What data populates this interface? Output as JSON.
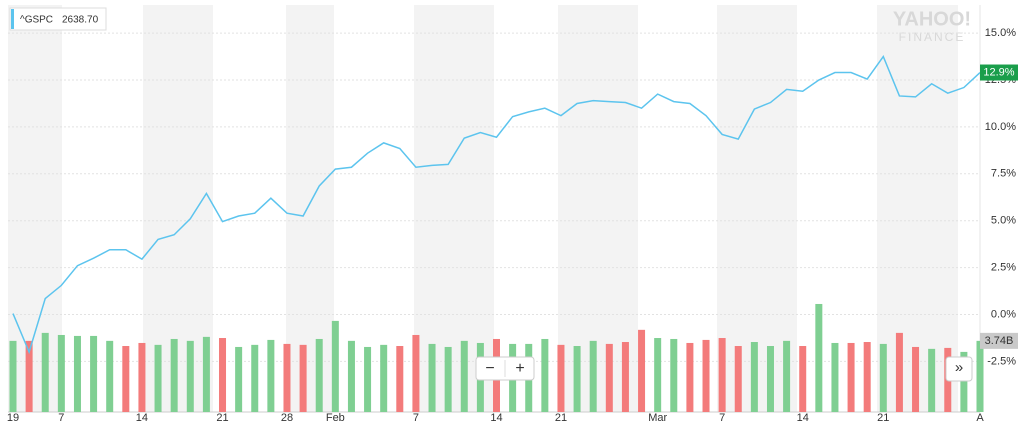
{
  "chart_data": {
    "type": "line",
    "legend": {
      "name": "^GSPC",
      "quote": {
        "value": 2638.7,
        "label": "2638.70"
      }
    },
    "watermark": [
      "YAHOO!",
      "FINANCE"
    ],
    "categories": [
      "19",
      null,
      null,
      "7",
      null,
      null,
      null,
      null,
      "14",
      null,
      null,
      null,
      null,
      "21",
      null,
      null,
      null,
      "28",
      null,
      null,
      "Feb",
      null,
      null,
      null,
      null,
      "7",
      null,
      null,
      null,
      null,
      "14",
      null,
      null,
      null,
      "21",
      null,
      null,
      null,
      null,
      null,
      "Mar",
      null,
      null,
      null,
      "7",
      null,
      null,
      null,
      null,
      "14",
      null,
      null,
      null,
      null,
      "21",
      null,
      null,
      null,
      null,
      null,
      "A"
    ],
    "series": [
      {
        "name": "^GSPC",
        "color": "#5cc4ee",
        "values": [
          0.05,
          -2.0,
          0.85,
          1.55,
          2.6,
          3.0,
          3.45,
          3.45,
          2.95,
          4.0,
          4.25,
          5.1,
          6.45,
          4.95,
          5.25,
          5.4,
          6.2,
          5.4,
          5.25,
          6.85,
          7.75,
          7.85,
          8.6,
          9.15,
          8.85,
          7.85,
          7.95,
          8.0,
          9.4,
          9.7,
          9.45,
          10.55,
          10.8,
          11.0,
          10.6,
          11.25,
          11.4,
          11.35,
          11.3,
          11.0,
          11.75,
          11.35,
          11.25,
          10.6,
          9.6,
          9.35,
          10.95,
          11.3,
          12.0,
          11.9,
          12.5,
          12.9,
          12.9,
          12.55,
          13.75,
          11.65,
          11.6,
          12.3,
          11.8,
          12.1,
          12.9
        ]
      }
    ],
    "current": {
      "value": 12.9,
      "label": "12.9%",
      "color": "#1a9e4b"
    },
    "volume": {
      "axis": "y2",
      "values": [
        3.74,
        3.74,
        4.16,
        4.05,
        4.0,
        4.0,
        3.74,
        3.47,
        3.63,
        3.53,
        3.84,
        3.74,
        3.95,
        3.89,
        3.42,
        3.53,
        3.79,
        3.58,
        3.53,
        3.84,
        4.79,
        3.74,
        3.42,
        3.53,
        3.47,
        4.05,
        3.58,
        3.42,
        3.74,
        3.63,
        3.84,
        3.58,
        3.58,
        3.84,
        3.53,
        3.47,
        3.74,
        3.58,
        3.68,
        4.32,
        3.89,
        3.84,
        3.63,
        3.79,
        3.89,
        3.47,
        3.68,
        3.47,
        3.74,
        3.47,
        5.68,
        3.63,
        3.63,
        3.68,
        3.58,
        4.16,
        3.42,
        3.32,
        3.37,
        3.16,
        3.74
      ],
      "colors": [
        "#7fcf92",
        "#f37b7b",
        "#7fcf92",
        "#7fcf92",
        "#7fcf92",
        "#7fcf92",
        "#7fcf92",
        "#f37b7b",
        "#f37b7b",
        "#7fcf92",
        "#7fcf92",
        "#7fcf92",
        "#7fcf92",
        "#f37b7b",
        "#7fcf92",
        "#7fcf92",
        "#7fcf92",
        "#f37b7b",
        "#f37b7b",
        "#7fcf92",
        "#7fcf92",
        "#7fcf92",
        "#7fcf92",
        "#7fcf92",
        "#f37b7b",
        "#f37b7b",
        "#7fcf92",
        "#7fcf92",
        "#7fcf92",
        "#7fcf92",
        "#f37b7b",
        "#7fcf92",
        "#7fcf92",
        "#7fcf92",
        "#f37b7b",
        "#7fcf92",
        "#7fcf92",
        "#f37b7b",
        "#f37b7b",
        "#f37b7b",
        "#7fcf92",
        "#7fcf92",
        "#f37b7b",
        "#f37b7b",
        "#f37b7b",
        "#f37b7b",
        "#7fcf92",
        "#7fcf92",
        "#7fcf92",
        "#f37b7b",
        "#7fcf92",
        "#7fcf92",
        "#f37b7b",
        "#f37b7b",
        "#7fcf92",
        "#f37b7b",
        "#f37b7b",
        "#7fcf92",
        "#f37b7b",
        "#7fcf92",
        "#7fcf92"
      ],
      "last": {
        "value": 3.74,
        "label": "3.74B"
      }
    },
    "ylim": [
      -5.2,
      16.5
    ],
    "y2lim": [
      0,
      21.4
    ],
    "yticks": [
      {
        "value": -2.5,
        "label": "-2.5%"
      },
      {
        "value": 0,
        "label": "0.0%"
      },
      {
        "value": 2.5,
        "label": "2.5%"
      },
      {
        "value": 5,
        "label": "5.0%"
      },
      {
        "value": 7.5,
        "label": "7.5%"
      },
      {
        "value": 10,
        "label": "10.0%"
      },
      {
        "value": 12.5,
        "label": "12.5%"
      },
      {
        "value": 15,
        "label": "15.0%"
      }
    ],
    "grid": true,
    "controls": {
      "zoom_out": "−",
      "zoom_in": "+",
      "scroll": "»"
    }
  }
}
